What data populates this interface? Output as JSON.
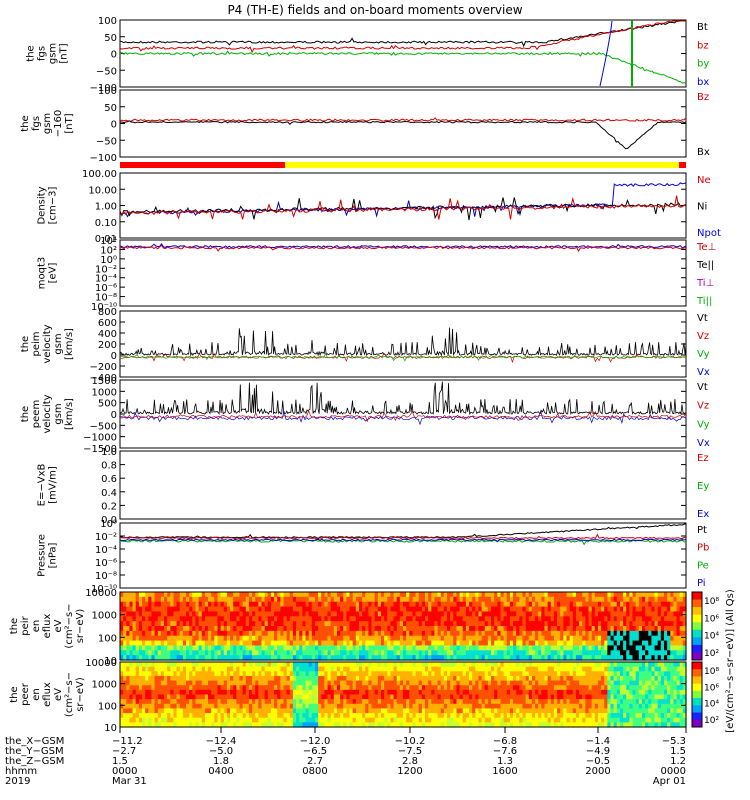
{
  "title": "P4 (TH-E) fields and on-board moments overview",
  "panels": [
    {
      "id": "fgs_gsm",
      "ylabel": [
        "the",
        "fgs",
        "gsm",
        "[nT]"
      ],
      "ticks": [
        "100",
        "50",
        "0",
        "−50",
        "−100"
      ],
      "legend": [
        {
          "t": "Bt",
          "c": "#000000"
        },
        {
          "t": "bz",
          "c": "#d40000"
        },
        {
          "t": "by",
          "c": "#00b000"
        },
        {
          "t": "bx",
          "c": "#0000e0"
        }
      ]
    },
    {
      "id": "fgs_gsm_hires",
      "ylabel": [
        "the",
        "fgs",
        "gsm",
        "−160",
        "[nT]"
      ],
      "ticks": [
        "100",
        "50",
        "0",
        "−50",
        "−100"
      ],
      "legend": [
        {
          "t": "Bz",
          "c": "#d40000"
        },
        {
          "t": "Bx",
          "c": "#000000"
        }
      ]
    },
    {
      "id": "density",
      "ylabel": [
        "Density",
        "[cm−3]"
      ],
      "ticks": [
        "100.00",
        "10.00",
        "1.00",
        "0.10",
        "0.01"
      ],
      "legend": [
        {
          "t": "Ne",
          "c": "#d40000"
        },
        {
          "t": "Ni",
          "c": "#000000"
        },
        {
          "t": "Npot",
          "c": "#0000e0"
        }
      ]
    },
    {
      "id": "temperature",
      "ylabel": [
        "moqt3",
        "[eV]"
      ],
      "ticks": [
        "10⁴",
        "10²",
        "10⁰",
        "10⁻²",
        "10⁻⁴",
        "10⁻⁶",
        "10⁻⁸",
        "10⁻¹⁰"
      ],
      "legend": [
        {
          "t": "Te⊥",
          "c": "#d40000"
        },
        {
          "t": "Te||",
          "c": "#000000"
        },
        {
          "t": "Ti⊥",
          "c": "#b000b0"
        },
        {
          "t": "Ti||",
          "c": "#00b000"
        }
      ]
    },
    {
      "id": "peim_velocity",
      "ylabel": [
        "the",
        "peim",
        "velocity",
        "gsm",
        "[km/s]"
      ],
      "ticks": [
        "800",
        "600",
        "400",
        "200",
        "0",
        "−200",
        "−400"
      ],
      "legend": [
        {
          "t": "Vt",
          "c": "#000000"
        },
        {
          "t": "Vz",
          "c": "#d40000"
        },
        {
          "t": "Vy",
          "c": "#00b000"
        },
        {
          "t": "Vx",
          "c": "#0000e0"
        }
      ]
    },
    {
      "id": "peem_velocity",
      "ylabel": [
        "the",
        "peem",
        "velocity",
        "gsm",
        "[km/s]"
      ],
      "ticks": [
        "1500",
        "1000",
        "500",
        "0",
        "−500",
        "−1000",
        "−1500"
      ],
      "legend": [
        {
          "t": "Vt",
          "c": "#000000"
        },
        {
          "t": "Vz",
          "c": "#d40000"
        },
        {
          "t": "Vy",
          "c": "#00b000"
        },
        {
          "t": "Vx",
          "c": "#0000e0"
        }
      ]
    },
    {
      "id": "efield",
      "ylabel": [
        "E=−VxB",
        "[mV/m]"
      ],
      "ticks": [
        "1.0",
        "0.8",
        "0.6",
        "0.4",
        "0.2",
        "0.0"
      ],
      "legend": [
        {
          "t": "Ez",
          "c": "#d40000"
        },
        {
          "t": "Ey",
          "c": "#00b000"
        },
        {
          "t": "Ex",
          "c": "#0000e0"
        }
      ]
    },
    {
      "id": "pressure",
      "ylabel": [
        "Pressure",
        "[nPa]"
      ],
      "ticks": [
        "10⁰",
        "10⁻²",
        "10⁻⁴",
        "10⁻⁶",
        "10⁻⁸",
        "10⁻¹⁰"
      ],
      "legend": [
        {
          "t": "Pt",
          "c": "#000000"
        },
        {
          "t": "Pb",
          "c": "#d40000"
        },
        {
          "t": "Pe",
          "c": "#00b000"
        },
        {
          "t": "Pi",
          "c": "#0000e0"
        }
      ]
    },
    {
      "id": "peir_spec",
      "ylabel": [
        "the",
        "peir",
        "en",
        "eflux",
        "eV",
        "(cm²−s−",
        "sr−eV)"
      ],
      "ticks": [
        "10000",
        "1000",
        "100",
        "10"
      ],
      "legend": []
    },
    {
      "id": "peer_spec",
      "ylabel": [
        "the",
        "peer",
        "en",
        "eflux",
        "eV",
        "(cm²−s−",
        "sr−eV)"
      ],
      "ticks": [
        "10000",
        "1000",
        "100",
        "10"
      ],
      "legend": []
    }
  ],
  "colorbar": {
    "label": "[eV/(cm²−s−sr−eV)] (All Qs)",
    "ticks": [
      "10⁸",
      "10⁶",
      "10⁴",
      "10²"
    ],
    "ticks2": [
      "10⁸",
      "10⁶",
      "10⁴",
      "10²"
    ]
  },
  "xaxis": {
    "rows": [
      {
        "name": "the_X−GSM",
        "values": [
          "−11.2",
          "−12.4",
          "−12.0",
          "−10.2",
          "−6.8",
          "−1.4",
          "−5.3"
        ]
      },
      {
        "name": "the_Y−GSM",
        "values": [
          "−2.7",
          "−5.0",
          "−6.5",
          "−7.5",
          "−7.6",
          "−4.9",
          "1.5"
        ]
      },
      {
        "name": "the_Z−GSM",
        "values": [
          "1.5",
          "1.8",
          "2.7",
          "2.8",
          "1.3",
          "−0.5",
          "1.2"
        ]
      },
      {
        "name": "hhmm",
        "values": [
          "0000",
          "0400",
          "0800",
          "1200",
          "1600",
          "2000",
          "0000"
        ]
      },
      {
        "name": "2019",
        "values": [
          "Mar 31",
          "",
          "",
          "",
          "",
          "",
          "Apr 01"
        ]
      }
    ]
  },
  "chart_data": {
    "type": "line",
    "title": "P4 (TH-E) fields and on-board moments overview",
    "x": [
      "0000",
      "0400",
      "0800",
      "1200",
      "1600",
      "2000",
      "0000"
    ],
    "xlabel": "hhmm",
    "series": [
      {
        "name": "Bt",
        "values": [
          35,
          40,
          35,
          40,
          45,
          60,
          100
        ]
      },
      {
        "name": "bz",
        "values": [
          25,
          30,
          25,
          30,
          35,
          60,
          100
        ]
      },
      {
        "name": "by",
        "values": [
          0,
          0,
          -5,
          0,
          0,
          -20,
          -100
        ]
      },
      {
        "name": "Ni",
        "values": [
          0.2,
          0.3,
          0.05,
          0.6,
          0.8,
          2.0,
          50
        ]
      },
      {
        "name": "Ne",
        "values": [
          0.25,
          0.3,
          0.05,
          0.5,
          0.8,
          1.0,
          1.0
        ]
      }
    ],
    "ylim": [
      -100,
      100
    ]
  }
}
